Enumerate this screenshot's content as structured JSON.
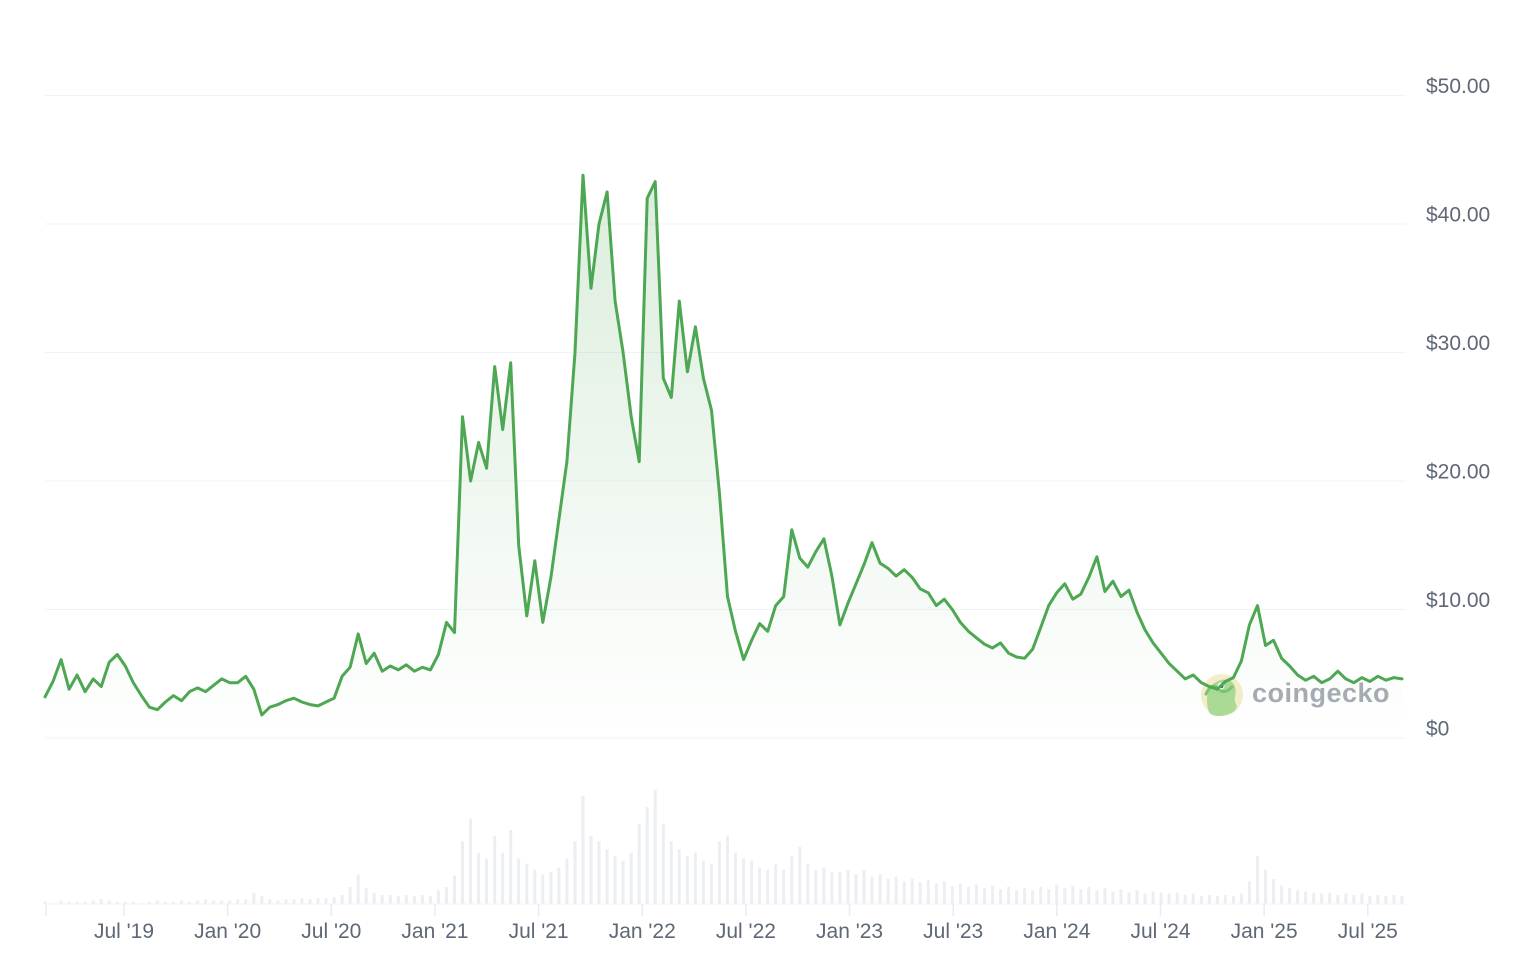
{
  "watermark": {
    "text": "coingecko"
  },
  "colors": {
    "line": "#4DA753",
    "area_top": "rgba(77,167,83,0.20)",
    "area_bottom": "rgba(77,167,83,0.0)",
    "volume_bar": "#ECEEF4",
    "grid_line": "#F2F3F6",
    "axis_line": "#F2F3F6",
    "tick_mark": "#E9EBF1",
    "axis_text": "#5E6876",
    "watermark_text": "#8E959F",
    "logo_circle": "#F5ECC6",
    "logo_body": "#A6D78E",
    "logo_accent": "#6CBF69",
    "logo_eye": "#3A3F45"
  },
  "chart_data": {
    "type": "line",
    "subtype": "price-with-volume",
    "grid": "horizontal",
    "legend": "none",
    "y_axis_side": "right",
    "ylim": [
      0,
      50
    ],
    "y_tick_values": [
      50,
      40,
      30,
      20,
      10,
      0
    ],
    "y_tick_labels": [
      "$50.00",
      "$40.00",
      "$30.00",
      "$20.00",
      "$10.00",
      "$0"
    ],
    "x_tick_labels": [
      "Jul '19",
      "Jan '20",
      "Jul '20",
      "Jan '21",
      "Jul '21",
      "Jan '22",
      "Jul '22",
      "Jan '23",
      "Jul '23",
      "Jan '24",
      "Jul '24",
      "Jan '25",
      "Jul '25"
    ],
    "x_range_approx": [
      "Mar 2019",
      "Aug 2025"
    ],
    "series": [
      {
        "name": "price_usd",
        "values": [
          3.2,
          4.4,
          6.1,
          3.8,
          4.9,
          3.6,
          4.6,
          4.0,
          5.9,
          6.5,
          5.6,
          4.3,
          3.3,
          2.4,
          2.2,
          2.8,
          3.3,
          2.9,
          3.6,
          3.9,
          3.6,
          4.1,
          4.6,
          4.3,
          4.3,
          4.8,
          3.8,
          1.8,
          2.4,
          2.6,
          2.9,
          3.1,
          2.8,
          2.6,
          2.5,
          2.8,
          3.1,
          4.8,
          5.5,
          8.1,
          5.8,
          6.6,
          5.2,
          5.6,
          5.3,
          5.7,
          5.2,
          5.5,
          5.3,
          6.5,
          9.0,
          8.2,
          25.0,
          20.0,
          23.0,
          21.0,
          28.9,
          24.0,
          29.2,
          15.0,
          9.5,
          13.8,
          9.0,
          12.5,
          17.0,
          21.5,
          30.0,
          43.8,
          35.0,
          40.0,
          42.5,
          34.0,
          30.0,
          25.0,
          21.5,
          42.0,
          43.3,
          28.0,
          26.5,
          34.0,
          28.5,
          32.0,
          28.0,
          25.5,
          19.0,
          11.0,
          8.3,
          6.1,
          7.6,
          8.9,
          8.3,
          10.3,
          11.0,
          16.2,
          14.0,
          13.3,
          14.5,
          15.5,
          12.6,
          8.8,
          10.5,
          12.0,
          13.5,
          15.2,
          13.6,
          13.2,
          12.6,
          13.1,
          12.5,
          11.6,
          11.3,
          10.3,
          10.8,
          10.0,
          9.0,
          8.3,
          7.8,
          7.3,
          7.0,
          7.4,
          6.6,
          6.3,
          6.2,
          6.9,
          8.6,
          10.3,
          11.3,
          12.0,
          10.8,
          11.2,
          12.5,
          14.1,
          11.4,
          12.2,
          11.0,
          11.5,
          9.8,
          8.4,
          7.4,
          6.6,
          5.8,
          5.2,
          4.6,
          4.9,
          4.3,
          4.0,
          3.8,
          4.4,
          4.7,
          6.0,
          8.8,
          10.3,
          7.2,
          7.6,
          6.2,
          5.6,
          4.9,
          4.5,
          4.8,
          4.3,
          4.6,
          5.2,
          4.6,
          4.3,
          4.7,
          4.4,
          4.8,
          4.5,
          4.7,
          4.6
        ]
      }
    ],
    "volume": {
      "name": "volume_relative_pct",
      "values": [
        2,
        1,
        3,
        2,
        2,
        2,
        3,
        4,
        3,
        2,
        2,
        2,
        1,
        2,
        3,
        2,
        2,
        3,
        2,
        3,
        4,
        3,
        3,
        3,
        4,
        4,
        10,
        7,
        4,
        3,
        4,
        4,
        5,
        4,
        5,
        5,
        6,
        8,
        15,
        26,
        14,
        10,
        8,
        8,
        7,
        8,
        7,
        8,
        7,
        12,
        15,
        25,
        55,
        75,
        45,
        40,
        60,
        45,
        65,
        40,
        35,
        30,
        26,
        28,
        32,
        40,
        55,
        95,
        60,
        55,
        48,
        42,
        38,
        45,
        70,
        85,
        100,
        70,
        55,
        48,
        42,
        45,
        38,
        35,
        55,
        60,
        45,
        40,
        38,
        32,
        30,
        35,
        30,
        42,
        50,
        35,
        30,
        32,
        28,
        28,
        30,
        26,
        30,
        24,
        26,
        22,
        24,
        20,
        22,
        19,
        21,
        18,
        20,
        16,
        18,
        15,
        17,
        14,
        16,
        13,
        15,
        12,
        14,
        12,
        15,
        13,
        17,
        14,
        16,
        13,
        15,
        12,
        14,
        11,
        13,
        10,
        12,
        9,
        11,
        10,
        9,
        10,
        8,
        9,
        7,
        8,
        7,
        8,
        7,
        9,
        20,
        42,
        30,
        22,
        16,
        14,
        12,
        11,
        10,
        9,
        10,
        8,
        9,
        8,
        9,
        7,
        8,
        7,
        8,
        7
      ]
    }
  }
}
